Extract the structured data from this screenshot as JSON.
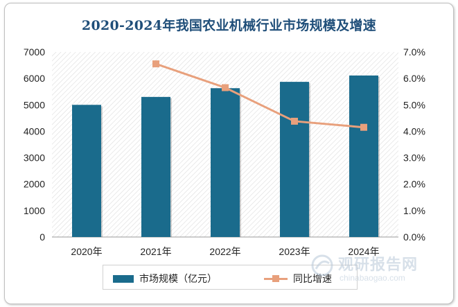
{
  "chart_data": {
    "type": "bar+line",
    "title": "2020-2024年我国农业机械行业市场规模及增速",
    "categories": [
      "2020年",
      "2021年",
      "2022年",
      "2023年",
      "2024年"
    ],
    "series": [
      {
        "name": "市场规模（亿元）",
        "type": "bar",
        "axis": "left",
        "color": "#1a6b8c",
        "values": [
          5000,
          5300,
          5630,
          5870,
          6110
        ]
      },
      {
        "name": "同比增速",
        "type": "line",
        "axis": "right",
        "color": "#e8a07c",
        "values": [
          null,
          6.55,
          5.65,
          4.38,
          4.15
        ]
      }
    ],
    "y_left": {
      "min": 0,
      "max": 7000,
      "ticks": [
        "0",
        "1000",
        "2000",
        "3000",
        "4000",
        "5000",
        "6000",
        "7000"
      ]
    },
    "y_right": {
      "min": 0,
      "max": 7,
      "ticks": [
        "0.0%",
        "1.0%",
        "2.0%",
        "3.0%",
        "4.0%",
        "5.0%",
        "6.0%",
        "7.0%"
      ]
    },
    "legend_position": "bottom",
    "plot_background": "diagonal-hatch"
  },
  "watermark": {
    "cn": "观研报告网",
    "en": "chinabaogao.com"
  }
}
